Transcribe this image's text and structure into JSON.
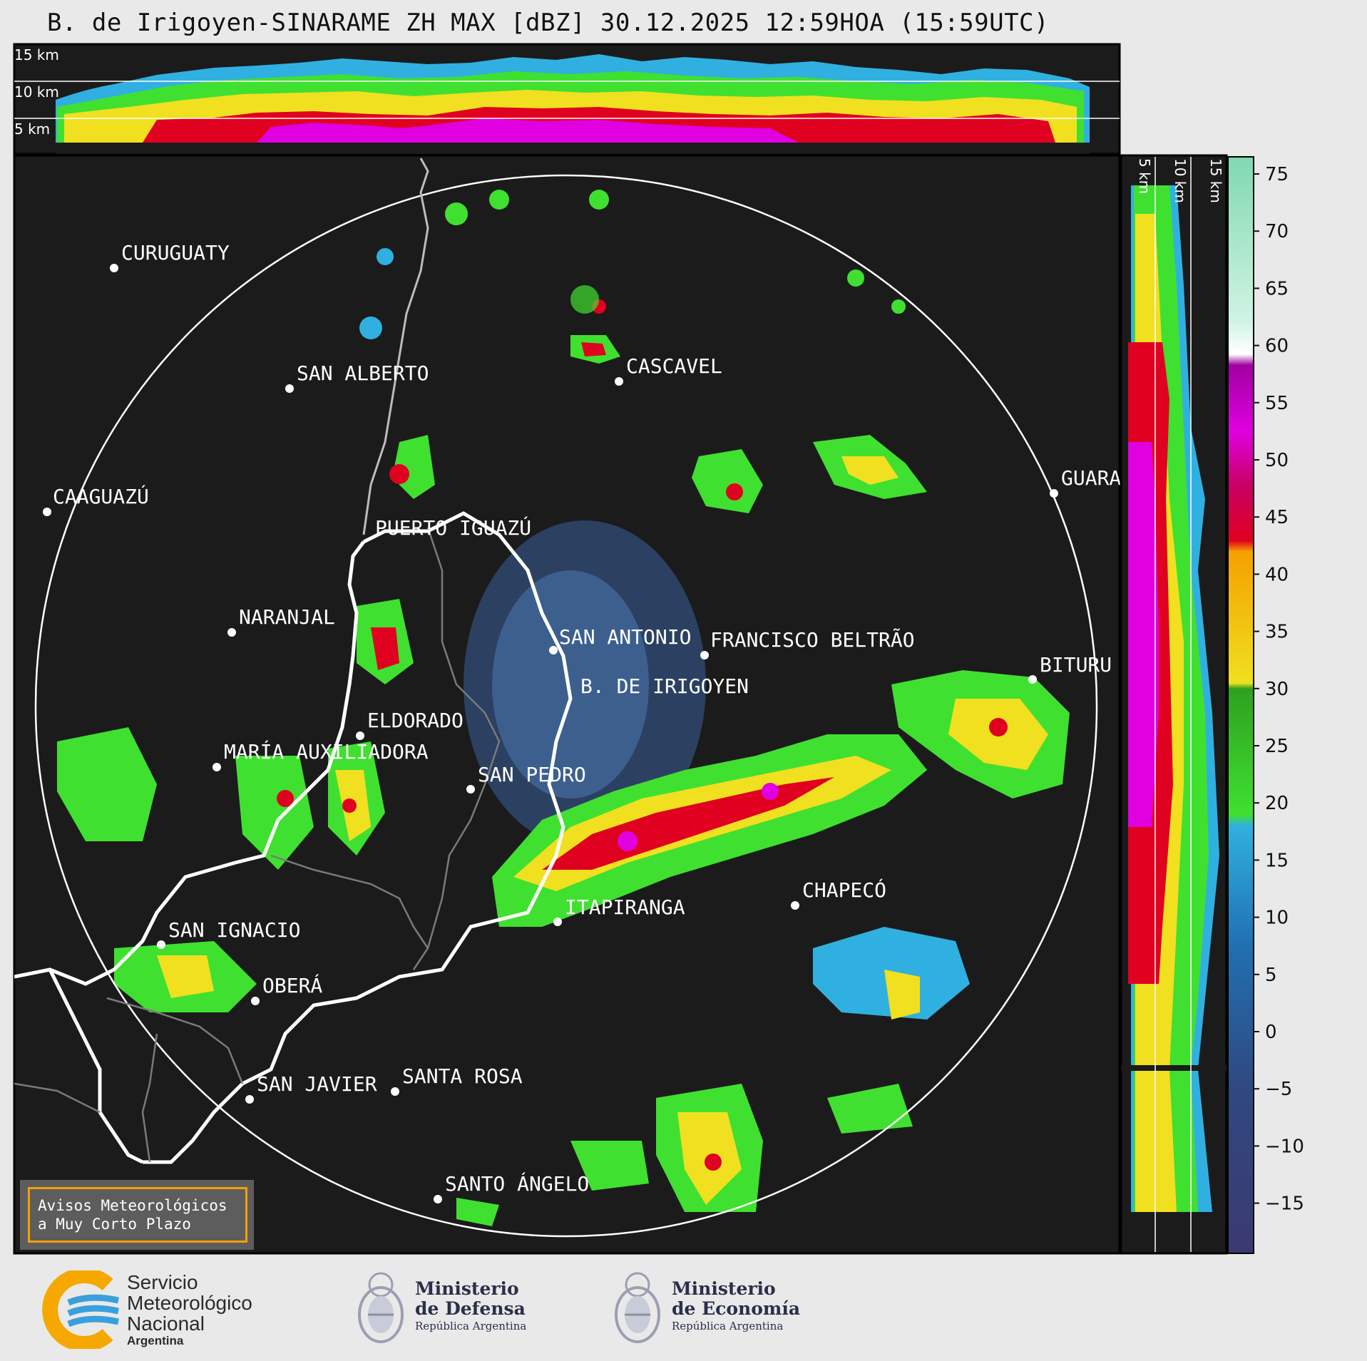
{
  "title": "B. de Irigoyen-SINARAME ZH MAX [dBZ] 30.12.2025 12:59HOA (15:59UTC)",
  "top_panel_labels": [
    "15 km",
    "10 km",
    "5 km"
  ],
  "side_panel_labels": [
    "5 km",
    "10 km",
    "15 km"
  ],
  "cities": [
    {
      "name": "CURUGUATY"
    },
    {
      "name": "SAN ALBERTO"
    },
    {
      "name": "CASCAVEL"
    },
    {
      "name": "CAAGUAZÚ"
    },
    {
      "name": "GUARA"
    },
    {
      "name": "PUERTO IGUAZÚ"
    },
    {
      "name": "NARANJAL"
    },
    {
      "name": "SAN ANTONIO"
    },
    {
      "name": "FRANCISCO BELTRÃO"
    },
    {
      "name": "BITURU"
    },
    {
      "name": "B. DE IRIGOYEN"
    },
    {
      "name": "ELDORADO"
    },
    {
      "name": "MARÍA AUXILIADORA"
    },
    {
      "name": "SAN PEDRO"
    },
    {
      "name": "CHAPECÓ"
    },
    {
      "name": "ITAPIRANGA"
    },
    {
      "name": "SAN IGNACIO"
    },
    {
      "name": "OBERÁ"
    },
    {
      "name": "SAN JAVIER"
    },
    {
      "name": "SANTA ROSA"
    },
    {
      "name": "SANTO ÁNGELO"
    }
  ],
  "colorbar": {
    "ticks": [
      "75",
      "70",
      "65",
      "60",
      "55",
      "50",
      "45",
      "40",
      "35",
      "30",
      "25",
      "20",
      "15",
      "10",
      "5",
      "0",
      "−5",
      "−10",
      "−15"
    ],
    "colors": [
      "#80d8b0",
      "#a8e8cc",
      "#d0f4e4",
      "#ffffff",
      "#a000a0",
      "#e000e0",
      "#c80064",
      "#e00020",
      "#f5a000",
      "#f0e020",
      "#2ea020",
      "#40e030",
      "#30b0e0",
      "#2070b0",
      "#304880",
      "#3a3a70"
    ]
  },
  "warning_box": {
    "line1": "Avisos Meteorológicos",
    "line2": "a Muy Corto Plazo"
  },
  "logos": {
    "smn": {
      "line1": "Servicio",
      "line2": "Meteorológico",
      "line3": "Nacional",
      "line4": "Argentina"
    },
    "defensa": {
      "line1": "Ministerio",
      "line2": "de Defensa",
      "line3": "República Argentina"
    },
    "economia": {
      "line1": "Ministerio",
      "line2": "de Economía",
      "line3": "República Argentina"
    }
  }
}
